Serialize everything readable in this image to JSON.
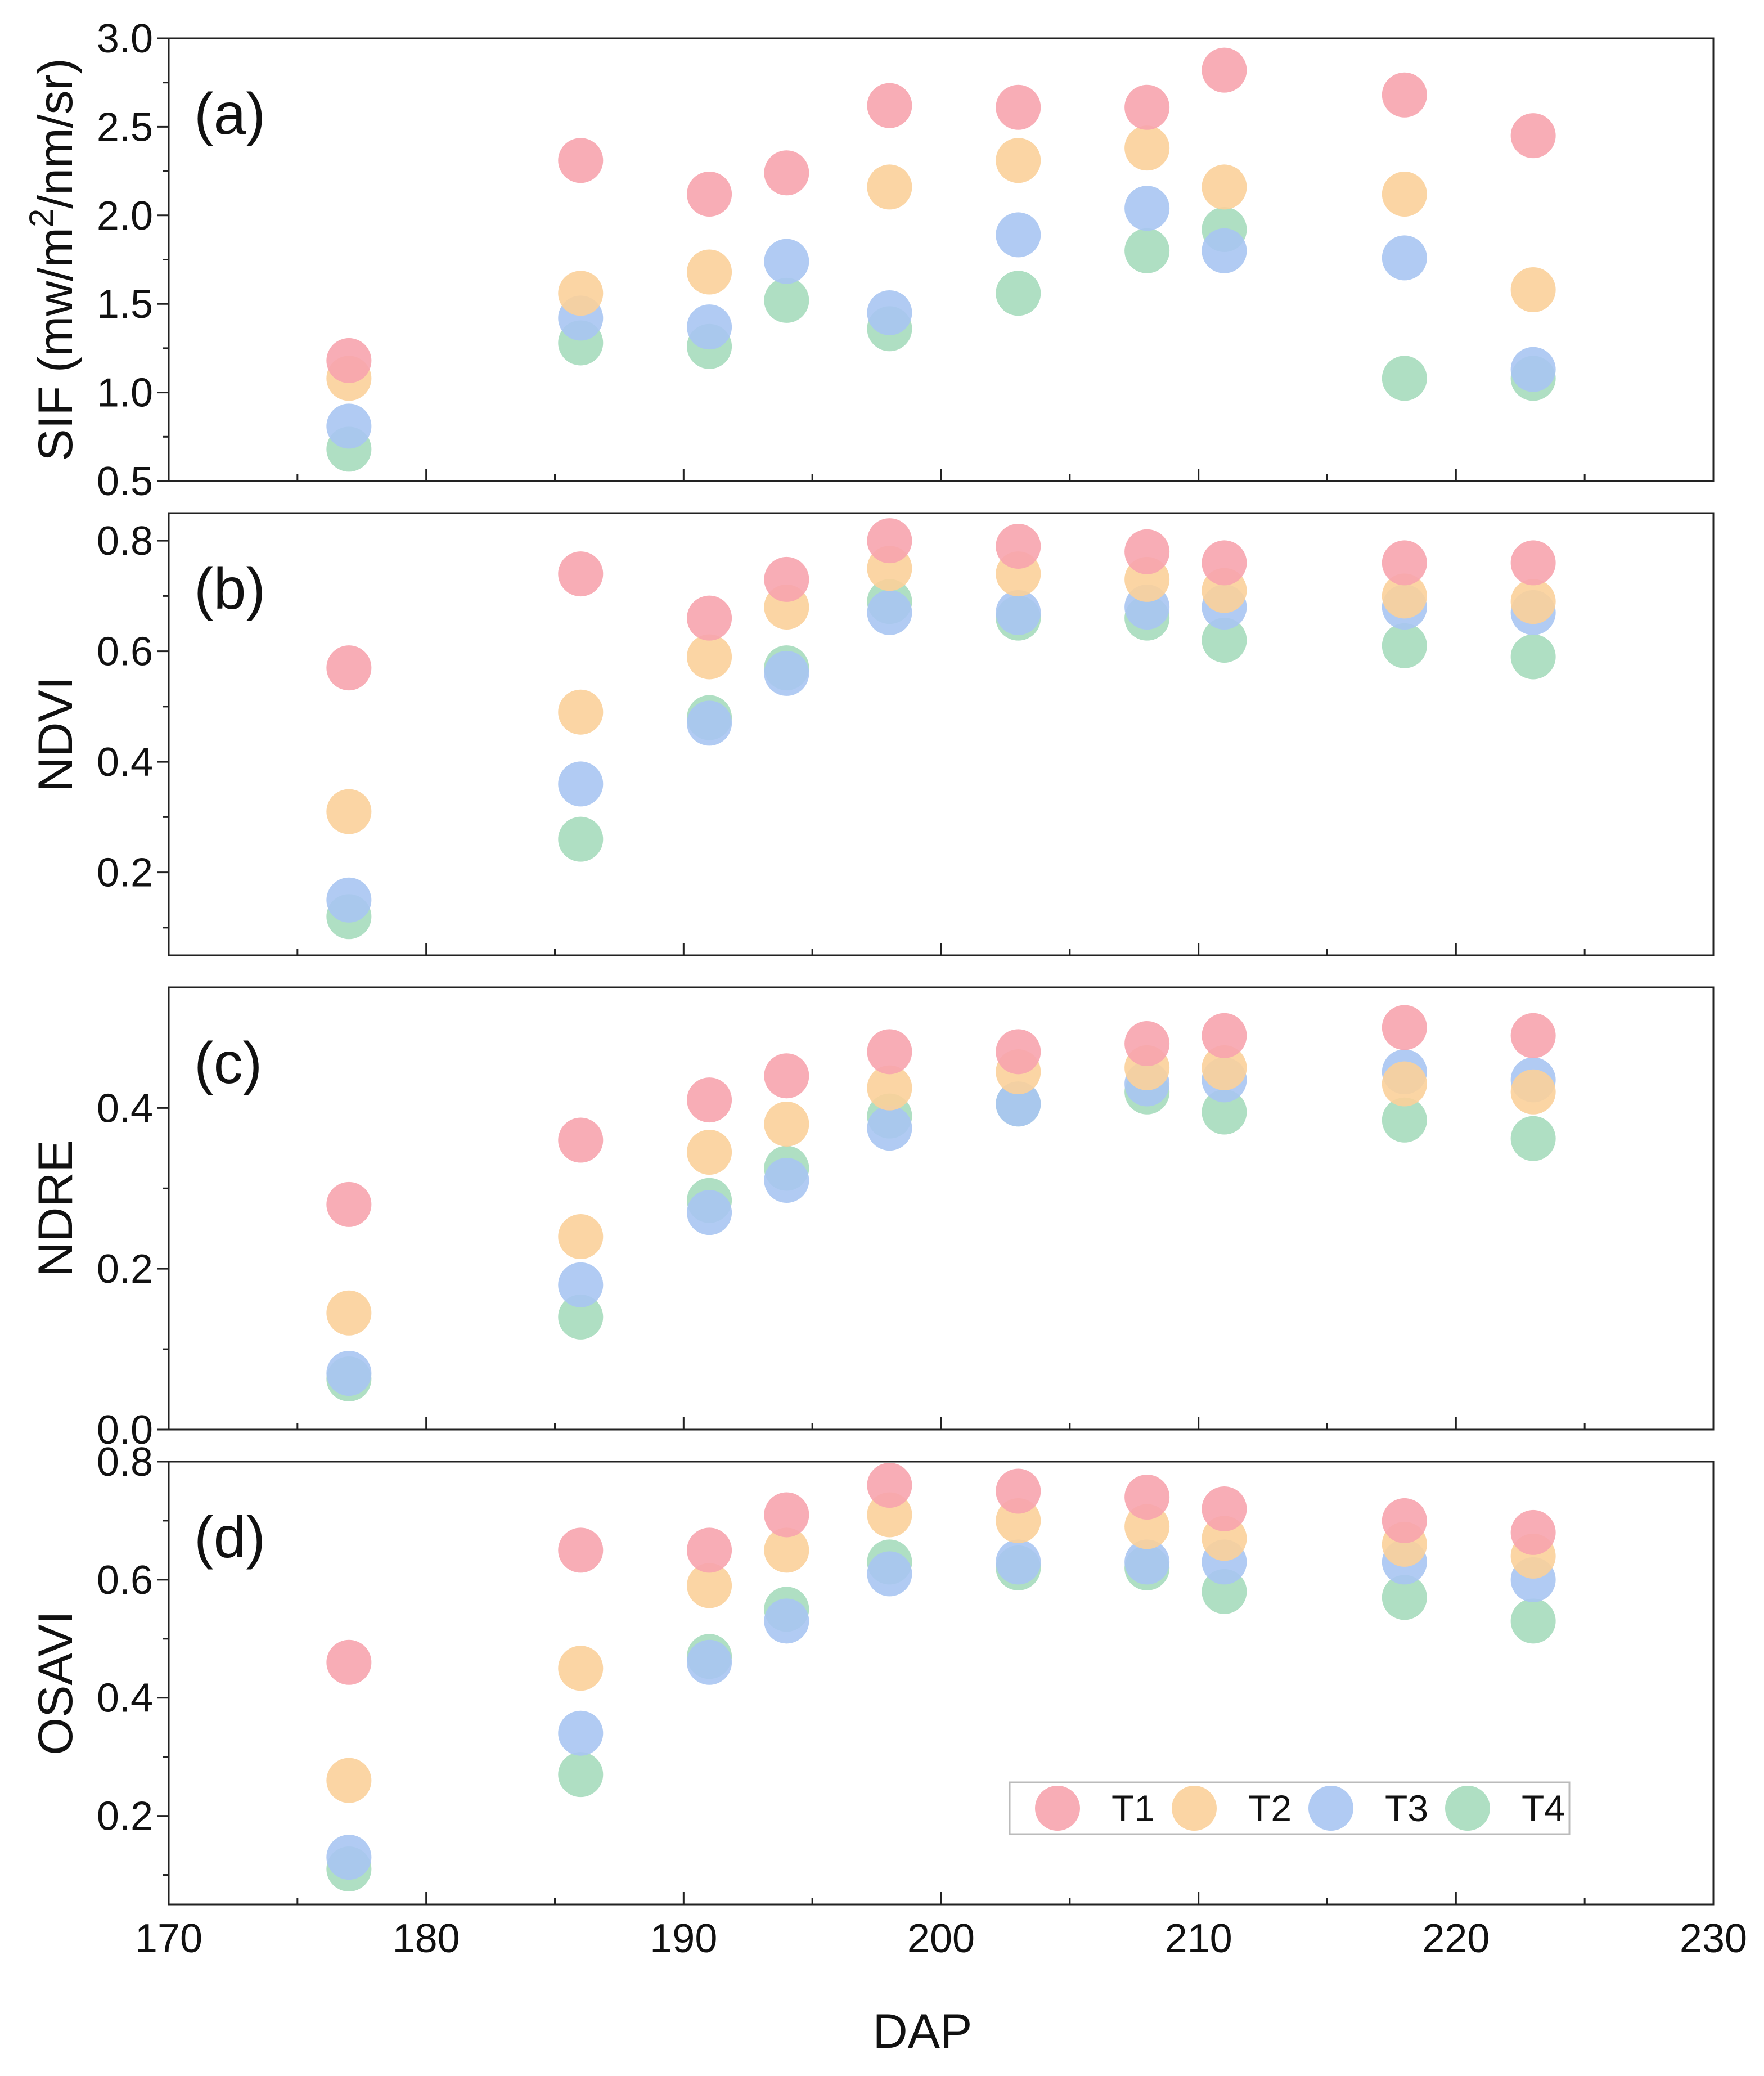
{
  "chart_data": {
    "type": "scatter",
    "x": [
      177,
      186,
      191,
      194,
      198,
      203,
      208,
      211,
      218,
      223
    ],
    "xlim": [
      170,
      230
    ],
    "xticks": [
      "170",
      "180",
      "190",
      "200",
      "210",
      "220",
      "230"
    ],
    "xlabel": "DAP",
    "legend": {
      "position": "bottom-right",
      "entries": [
        "T1",
        "T2",
        "T3",
        "T4"
      ]
    },
    "colors": {
      "T1": "#f7a4ae",
      "T2": "#fbd09a",
      "T3": "#a9c5f2",
      "T4": "#a6dcbd"
    },
    "panels": [
      {
        "label": "(a)",
        "ylabel": "SIF (mw/m2/nm/sr)",
        "ylim": [
          0.5,
          3.0
        ],
        "yticks": [
          "0.5",
          "1.0",
          "1.5",
          "2.0",
          "2.5",
          "3.0"
        ],
        "series": [
          {
            "name": "T1",
            "values": [
              1.18,
              2.31,
              2.12,
              2.24,
              2.62,
              2.61,
              2.61,
              2.82,
              2.68,
              2.45
            ]
          },
          {
            "name": "T2",
            "values": [
              1.08,
              1.56,
              1.68,
              null,
              2.16,
              2.31,
              2.38,
              2.16,
              2.12,
              1.58
            ]
          },
          {
            "name": "T3",
            "values": [
              0.81,
              1.42,
              1.37,
              1.74,
              1.45,
              1.89,
              2.04,
              1.8,
              1.76,
              1.13
            ]
          },
          {
            "name": "T4",
            "values": [
              0.68,
              1.28,
              1.26,
              1.52,
              1.36,
              1.56,
              1.8,
              1.92,
              1.08,
              1.08
            ]
          }
        ]
      },
      {
        "label": "(b)",
        "ylabel": "NDVI",
        "ylim": [
          0.05,
          0.85
        ],
        "yticks": [
          "0.2",
          "0.4",
          "0.6",
          "0.8"
        ],
        "ytick_values": [
          0.2,
          0.4,
          0.6,
          0.8
        ],
        "series": [
          {
            "name": "T1",
            "values": [
              0.57,
              0.74,
              0.66,
              0.73,
              0.8,
              0.79,
              0.78,
              0.76,
              0.76,
              0.76
            ]
          },
          {
            "name": "T2",
            "values": [
              0.31,
              0.49,
              0.59,
              0.68,
              0.75,
              0.74,
              0.73,
              0.71,
              0.7,
              0.69
            ]
          },
          {
            "name": "T3",
            "values": [
              0.15,
              0.36,
              0.47,
              0.56,
              0.67,
              0.67,
              0.68,
              0.68,
              0.68,
              0.67
            ]
          },
          {
            "name": "T4",
            "values": [
              0.12,
              0.26,
              0.48,
              0.57,
              0.69,
              0.66,
              0.66,
              0.62,
              0.61,
              0.59
            ]
          }
        ]
      },
      {
        "label": "(c)",
        "ylabel": "NDRE",
        "ylim": [
          0.0,
          0.55
        ],
        "yticks": [
          "0.0",
          "0.2",
          "0.4"
        ],
        "ytick_values": [
          0.0,
          0.2,
          0.4
        ],
        "series": [
          {
            "name": "T1",
            "values": [
              0.28,
              0.36,
              0.41,
              0.44,
              0.47,
              0.47,
              0.48,
              0.49,
              0.5,
              0.49
            ]
          },
          {
            "name": "T2",
            "values": [
              0.145,
              0.24,
              0.345,
              0.38,
              0.425,
              0.445,
              0.45,
              0.45,
              0.43,
              0.42
            ]
          },
          {
            "name": "T3",
            "values": [
              0.07,
              0.18,
              0.27,
              0.31,
              0.375,
              0.405,
              0.43,
              0.435,
              0.445,
              0.435
            ]
          },
          {
            "name": "T4",
            "values": [
              0.063,
              0.14,
              0.285,
              0.325,
              0.39,
              0.405,
              0.42,
              0.395,
              0.385,
              0.362
            ]
          }
        ]
      },
      {
        "label": "(d)",
        "ylabel": "OSAVI",
        "ylim": [
          0.05,
          0.8
        ],
        "yticks": [
          "0.2",
          "0.4",
          "0.6",
          "0.8"
        ],
        "ytick_values": [
          0.2,
          0.4,
          0.6,
          0.8
        ],
        "series": [
          {
            "name": "T1",
            "values": [
              0.46,
              0.65,
              0.65,
              0.71,
              0.76,
              0.75,
              0.74,
              0.72,
              0.7,
              0.68
            ]
          },
          {
            "name": "T2",
            "values": [
              0.26,
              0.45,
              0.59,
              0.65,
              0.71,
              0.7,
              0.69,
              0.67,
              0.66,
              0.64
            ]
          },
          {
            "name": "T3",
            "values": [
              0.13,
              0.34,
              0.46,
              0.53,
              0.61,
              0.63,
              0.63,
              0.63,
              0.63,
              0.6
            ]
          },
          {
            "name": "T4",
            "values": [
              0.11,
              0.27,
              0.47,
              0.55,
              0.63,
              0.62,
              0.62,
              0.58,
              0.57,
              0.53
            ]
          }
        ]
      }
    ]
  }
}
